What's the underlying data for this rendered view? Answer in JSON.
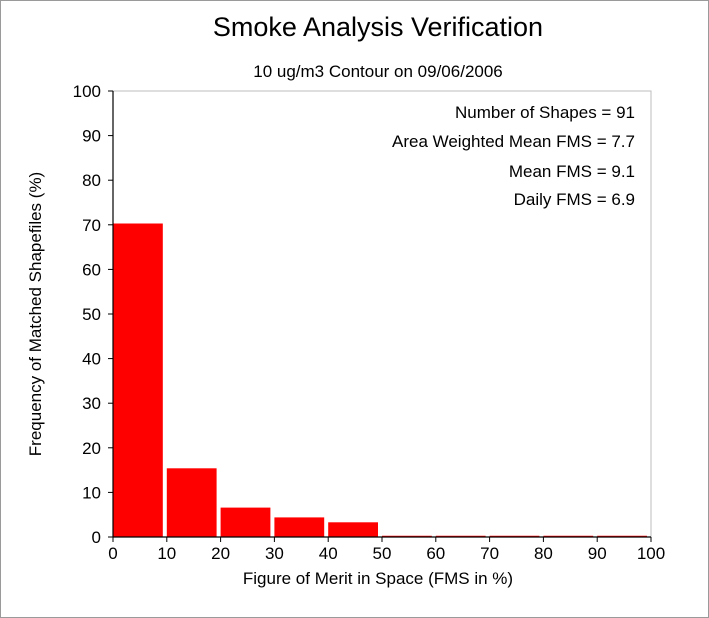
{
  "chart_data": {
    "type": "bar",
    "title": "Smoke Analysis Verification",
    "subtitle": "10 ug/m3 Contour on 09/06/2006",
    "xlabel": "Figure of Merit in Space (FMS in %)",
    "ylabel": "Frequency of Matched Shapefiles (%)",
    "xlim": [
      0,
      100
    ],
    "ylim": [
      0,
      100
    ],
    "xticks": [
      0,
      10,
      20,
      30,
      40,
      50,
      60,
      70,
      80,
      90,
      100
    ],
    "yticks": [
      0,
      10,
      20,
      30,
      40,
      50,
      60,
      70,
      80,
      90,
      100
    ],
    "bin_width": 10,
    "bins": [
      {
        "start": 0,
        "end": 10,
        "value": 70.3
      },
      {
        "start": 10,
        "end": 20,
        "value": 15.4
      },
      {
        "start": 20,
        "end": 30,
        "value": 6.6
      },
      {
        "start": 30,
        "end": 40,
        "value": 4.4
      },
      {
        "start": 40,
        "end": 50,
        "value": 3.3
      },
      {
        "start": 50,
        "end": 60,
        "value": 0
      },
      {
        "start": 60,
        "end": 70,
        "value": 0
      },
      {
        "start": 70,
        "end": 80,
        "value": 0
      },
      {
        "start": 80,
        "end": 90,
        "value": 0
      },
      {
        "start": 90,
        "end": 100,
        "value": 0
      }
    ],
    "bar_color": "#ff0000",
    "grid": false,
    "legend": "none",
    "annotations": [
      "Number of Shapes = 91",
      "Area Weighted Mean FMS = 7.7",
      "Mean FMS = 9.1",
      "Daily FMS = 6.9"
    ]
  }
}
